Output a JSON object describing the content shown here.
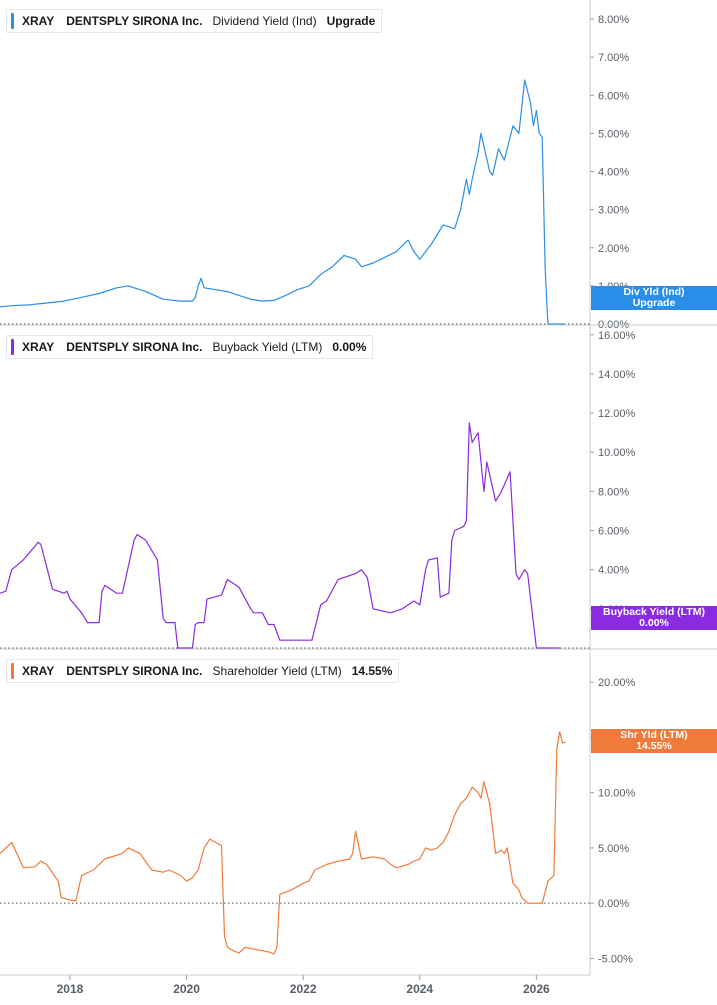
{
  "chart_data": [
    {
      "type": "line",
      "ticker": "XRAY",
      "company": "DENTSPLY SIRONA Inc.",
      "metric": "Dividend Yield (Ind)",
      "legend_value": "Upgrade",
      "color": "#2a8ee8",
      "ylim": [
        0,
        8.5
      ],
      "y_ticks": [
        1,
        2,
        3,
        4,
        5,
        6,
        7,
        8
      ],
      "y_tick_labels": [
        "1.00%",
        "2.00%",
        "3.00%",
        "4.00%",
        "5.00%",
        "6.00%",
        "7.00%",
        "8.00%"
      ],
      "zero_label": "0.00%",
      "tag_label": "Div Yld (Ind)",
      "tag_value": "Upgrade",
      "x": [
        2016.8,
        2017.0,
        2017.3,
        2017.6,
        2017.9,
        2018.2,
        2018.5,
        2018.8,
        2019.0,
        2019.3,
        2019.6,
        2019.9,
        2020.1,
        2020.15,
        2020.2,
        2020.25,
        2020.3,
        2020.5,
        2020.7,
        2020.9,
        2021.1,
        2021.3,
        2021.5,
        2021.7,
        2021.9,
        2022.1,
        2022.3,
        2022.5,
        2022.7,
        2022.9,
        2023.0,
        2023.2,
        2023.4,
        2023.6,
        2023.8,
        2023.9,
        2024.0,
        2024.2,
        2024.4,
        2024.6,
        2024.7,
        2024.8,
        2024.85,
        2024.9,
        2025.0,
        2025.05,
        2025.2,
        2025.25,
        2025.35,
        2025.45,
        2025.6,
        2025.7,
        2025.8,
        2025.9,
        2025.95,
        2026.0,
        2026.05,
        2026.1,
        2026.15,
        2026.18,
        2026.2,
        2026.21,
        2026.25,
        2026.5
      ],
      "y": [
        0.45,
        0.48,
        0.5,
        0.55,
        0.6,
        0.7,
        0.8,
        0.95,
        1.0,
        0.85,
        0.65,
        0.6,
        0.6,
        0.7,
        1.0,
        1.2,
        0.95,
        0.9,
        0.85,
        0.75,
        0.65,
        0.6,
        0.62,
        0.75,
        0.9,
        1.0,
        1.3,
        1.5,
        1.8,
        1.7,
        1.5,
        1.6,
        1.75,
        1.9,
        2.2,
        1.9,
        1.7,
        2.1,
        2.6,
        2.5,
        3.0,
        3.8,
        3.4,
        3.8,
        4.5,
        5.0,
        4.0,
        3.9,
        4.6,
        4.3,
        5.2,
        5.0,
        6.4,
        5.8,
        5.2,
        5.6,
        5.0,
        4.9,
        1.5,
        0.5,
        0.0,
        0.0,
        0.0,
        0.0
      ]
    },
    {
      "type": "line",
      "ticker": "XRAY",
      "company": "DENTSPLY SIRONA Inc.",
      "metric": "Buyback Yield (LTM)",
      "legend_value": "0.00%",
      "color": "#8a2be2",
      "ylim": [
        0,
        16.5
      ],
      "y_ticks": [
        2,
        4,
        6,
        8,
        10,
        12,
        14,
        16
      ],
      "y_tick_labels": [
        "2.00%",
        "4.00%",
        "6.00%",
        "8.00%",
        "10.00%",
        "12.00%",
        "14.00%",
        "16.00%"
      ],
      "tag_label": "Buyback Yield (LTM)",
      "tag_value": "0.00%",
      "x": [
        2016.8,
        2016.9,
        2017.0,
        2017.2,
        2017.4,
        2017.45,
        2017.5,
        2017.7,
        2017.9,
        2017.95,
        2018.0,
        2018.2,
        2018.3,
        2018.5,
        2018.55,
        2018.6,
        2018.8,
        2018.9,
        2019.1,
        2019.15,
        2019.3,
        2019.5,
        2019.6,
        2019.65,
        2019.8,
        2019.85,
        2020.1,
        2020.15,
        2020.2,
        2020.3,
        2020.35,
        2020.6,
        2020.7,
        2020.8,
        2020.9,
        2021.1,
        2021.15,
        2021.3,
        2021.4,
        2021.5,
        2021.6,
        2021.9,
        2022.1,
        2022.15,
        2022.3,
        2022.4,
        2022.6,
        2022.9,
        2023.0,
        2023.1,
        2023.2,
        2023.5,
        2023.7,
        2023.9,
        2024.0,
        2024.1,
        2024.15,
        2024.3,
        2024.35,
        2024.5,
        2024.55,
        2024.6,
        2024.75,
        2024.8,
        2024.85,
        2024.9,
        2025.0,
        2025.1,
        2025.15,
        2025.3,
        2025.4,
        2025.55,
        2025.65,
        2025.7,
        2025.8,
        2025.85,
        2026.0,
        2026.4
      ],
      "y": [
        2.8,
        2.9,
        4.0,
        4.5,
        5.2,
        5.4,
        5.3,
        3.0,
        2.8,
        2.9,
        2.5,
        1.8,
        1.3,
        1.3,
        2.9,
        3.2,
        2.8,
        2.8,
        5.5,
        5.8,
        5.5,
        4.5,
        1.5,
        1.3,
        1.3,
        0.0,
        0.0,
        1.2,
        1.3,
        1.3,
        2.5,
        2.7,
        3.5,
        3.3,
        3.1,
        2.0,
        1.8,
        1.8,
        1.2,
        1.2,
        0.4,
        0.4,
        0.4,
        0.4,
        2.2,
        2.4,
        3.5,
        3.8,
        4.0,
        3.6,
        2.0,
        1.8,
        2.0,
        2.4,
        2.2,
        4.0,
        4.5,
        4.6,
        2.6,
        2.8,
        5.5,
        6.0,
        6.2,
        6.5,
        11.5,
        10.5,
        11.0,
        8.0,
        9.5,
        7.5,
        8.0,
        9.0,
        3.8,
        3.5,
        4.0,
        3.8,
        0.0,
        0.0
      ]
    },
    {
      "type": "line",
      "ticker": "XRAY",
      "company": "DENTSPLY SIRONA Inc.",
      "metric": "Shareholder Yield (LTM)",
      "legend_value": "14.55%",
      "color": "#f07a3a",
      "ylim": [
        -6.5,
        23
      ],
      "y_ticks": [
        -5,
        0,
        5,
        10,
        15,
        20
      ],
      "y_tick_labels": [
        "-5.00%",
        "0.00%",
        "5.00%",
        "10.00%",
        "15.00%",
        "20.00%"
      ],
      "tag_label": "Shr Yld (LTM)",
      "tag_value": "14.55%",
      "x": [
        2016.8,
        2017.0,
        2017.2,
        2017.4,
        2017.5,
        2017.6,
        2017.8,
        2017.85,
        2018.0,
        2018.1,
        2018.2,
        2018.4,
        2018.6,
        2018.9,
        2019.0,
        2019.2,
        2019.4,
        2019.6,
        2019.7,
        2019.9,
        2020.0,
        2020.1,
        2020.2,
        2020.3,
        2020.4,
        2020.5,
        2020.6,
        2020.65,
        2020.7,
        2020.8,
        2020.9,
        2021.0,
        2021.2,
        2021.4,
        2021.5,
        2021.55,
        2021.6,
        2021.8,
        2022.0,
        2022.1,
        2022.2,
        2022.4,
        2022.6,
        2022.8,
        2022.85,
        2022.9,
        2023.0,
        2023.2,
        2023.4,
        2023.5,
        2023.6,
        2023.8,
        2023.9,
        2024.0,
        2024.1,
        2024.2,
        2024.3,
        2024.4,
        2024.5,
        2024.6,
        2024.7,
        2024.8,
        2024.9,
        2025.0,
        2025.05,
        2025.1,
        2025.2,
        2025.3,
        2025.4,
        2025.45,
        2025.5,
        2025.6,
        2025.7,
        2025.75,
        2025.85,
        2026.0,
        2026.1,
        2026.2,
        2026.3,
        2026.35,
        2026.4,
        2026.45,
        2026.5
      ],
      "y": [
        4.5,
        5.5,
        3.2,
        3.3,
        3.8,
        3.5,
        2.0,
        0.5,
        0.3,
        0.2,
        2.5,
        3.0,
        4.0,
        4.5,
        5.0,
        4.5,
        3.0,
        2.8,
        3.0,
        2.5,
        2.0,
        2.3,
        3.0,
        5.0,
        5.8,
        5.5,
        5.2,
        -3.0,
        -4.0,
        -4.3,
        -4.5,
        -4.0,
        -4.2,
        -4.4,
        -4.6,
        -4.0,
        0.8,
        1.2,
        1.8,
        2.0,
        3.0,
        3.5,
        3.8,
        4.0,
        4.5,
        6.5,
        4.0,
        4.2,
        4.0,
        3.5,
        3.2,
        3.5,
        3.8,
        4.0,
        5.0,
        4.8,
        5.0,
        5.5,
        6.5,
        8.0,
        9.0,
        9.5,
        10.5,
        10.0,
        9.5,
        11.0,
        9.0,
        4.5,
        4.8,
        4.5,
        5.0,
        1.8,
        1.2,
        0.5,
        0.0,
        0.0,
        0.0,
        2.0,
        2.5,
        14.0,
        15.5,
        14.5,
        14.55
      ]
    }
  ],
  "x_axis": {
    "ticks": [
      2018,
      2020,
      2022,
      2024,
      2026
    ],
    "labels": [
      "2018",
      "2020",
      "2022",
      "2024",
      "2026"
    ]
  }
}
